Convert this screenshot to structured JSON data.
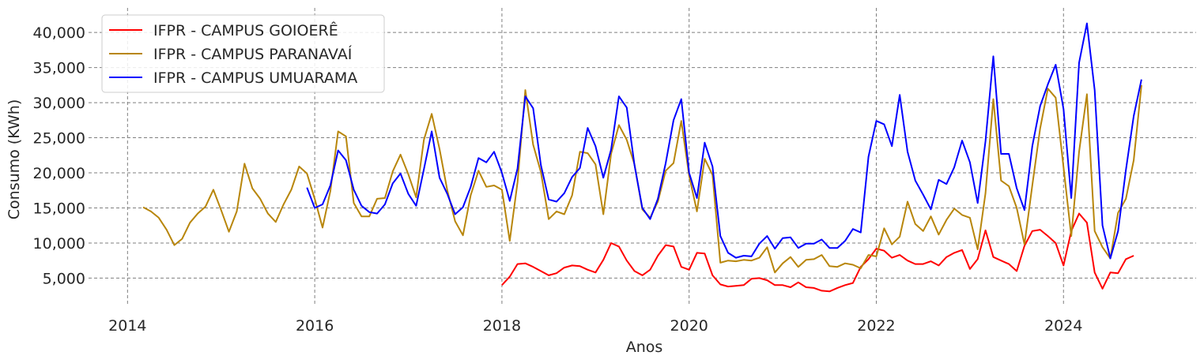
{
  "chart_data": {
    "type": "line",
    "xlabel": "Anos",
    "ylabel": "Consumo (KWh)",
    "xlim": [
      "2013-08-01",
      "2025-06-01"
    ],
    "ylim": [
      1000,
      43500
    ],
    "x_ticks": [
      2014,
      2016,
      2018,
      2020,
      2022,
      2024
    ],
    "y_ticks": [
      5000,
      10000,
      15000,
      20000,
      25000,
      30000,
      35000,
      40000
    ],
    "y_tick_labels": [
      "5,000",
      "10,000",
      "15,000",
      "20,000",
      "25,000",
      "30,000",
      "35,000",
      "40,000"
    ],
    "grid": true,
    "legend_position": "top-left",
    "series": [
      {
        "name": "IFPR - CAMPUS GOIOERÊ",
        "color": "#ff0000",
        "start": "2018-01",
        "values": [
          4000,
          5200,
          7000,
          7100,
          6600,
          6000,
          5400,
          5700,
          6500,
          6800,
          6700,
          6200,
          5800,
          7600,
          10000,
          9500,
          7500,
          6000,
          5400,
          6200,
          8200,
          9700,
          9500,
          6600,
          6200,
          8600,
          8500,
          5400,
          4100,
          3800,
          3900,
          4000,
          4900,
          5000,
          4700,
          4000,
          4000,
          3700,
          4400,
          3700,
          3600,
          3200,
          3100,
          3600,
          4000,
          4300,
          6600,
          7700,
          9200,
          8900,
          7900,
          8300,
          7500,
          7000,
          7000,
          7400,
          6800,
          8000,
          8600,
          9000,
          6300,
          7700,
          11800,
          8000,
          7500,
          7000,
          6000,
          9600,
          11700,
          11900,
          11000,
          10000,
          6800,
          11700,
          14200,
          12900,
          5800,
          3500,
          5800,
          5700,
          7700,
          8200
        ]
      },
      {
        "name": "IFPR - CAMPUS PARANAVAÍ",
        "color": "#b8860b",
        "start": "2014-03",
        "values": [
          15100,
          14500,
          13600,
          11900,
          9700,
          10600,
          12900,
          14200,
          15200,
          17600,
          14700,
          11600,
          14500,
          21300,
          17800,
          16300,
          14200,
          13000,
          15500,
          17600,
          20900,
          19900,
          16300,
          12200,
          17400,
          25900,
          25200,
          15700,
          13800,
          13800,
          16300,
          16400,
          20200,
          22600,
          19800,
          16500,
          24700,
          28400,
          23400,
          17500,
          13100,
          11100,
          16800,
          20300,
          18000,
          18200,
          17600,
          10300,
          18600,
          31800,
          24000,
          20100,
          13400,
          14500,
          14100,
          16800,
          23000,
          22800,
          21200,
          14100,
          22700,
          26800,
          24700,
          21200,
          14800,
          13600,
          15900,
          20300,
          21400,
          27400,
          19600,
          14500,
          22000,
          19700,
          7200,
          7500,
          7400,
          7600,
          7500,
          7900,
          9400,
          5800,
          7100,
          8000,
          6600,
          7600,
          7700,
          8300,
          6700,
          6600,
          7100,
          6900,
          6400,
          8300,
          8100,
          12100,
          9800,
          10900,
          15900,
          12700,
          11700,
          13800,
          11200,
          13300,
          14900,
          14000,
          13600,
          9100,
          17100,
          30500,
          18900,
          18100,
          15000,
          9800,
          18200,
          26300,
          32000,
          30700,
          20800,
          11000,
          23000,
          31200,
          11700,
          9400,
          7800,
          14300,
          16300,
          21800,
          32500
        ]
      },
      {
        "name": "IFPR - CAMPUS UMUARAMA",
        "color": "#0000ff",
        "start": "2015-12",
        "values": [
          17900,
          15000,
          15500,
          18200,
          23200,
          21800,
          17600,
          15300,
          14400,
          14200,
          15500,
          18500,
          19900,
          17000,
          15300,
          20500,
          25900,
          19300,
          17000,
          14100,
          15100,
          18000,
          22100,
          21500,
          23000,
          20000,
          16000,
          20600,
          30900,
          29200,
          21100,
          16200,
          15900,
          17100,
          19400,
          20700,
          26400,
          23800,
          19300,
          23300,
          30900,
          29300,
          21100,
          15000,
          13400,
          16300,
          21400,
          27500,
          30500,
          20000,
          16400,
          24300,
          20900,
          11000,
          8600,
          7900,
          8200,
          8100,
          9900,
          11000,
          9200,
          10700,
          10800,
          9300,
          9900,
          9900,
          10500,
          9300,
          9300,
          10300,
          12000,
          11500,
          22300,
          27400,
          26900,
          23800,
          31100,
          23000,
          18900,
          16900,
          14800,
          19000,
          18400,
          20800,
          24600,
          21500,
          15700,
          24500,
          36600,
          22700,
          22700,
          17800,
          14700,
          23800,
          29500,
          32600,
          35400,
          29100,
          16400,
          35700,
          41300,
          31800,
          12500,
          7800,
          11700,
          20400,
          28100,
          33300
        ]
      }
    ]
  }
}
